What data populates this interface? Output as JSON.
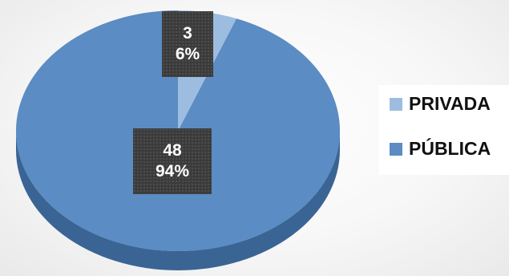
{
  "chart_data": {
    "type": "pie",
    "style": "3d",
    "slices": [
      {
        "name": "PRIVADA",
        "value": 3,
        "percent": "6%",
        "color": "#9dbde0"
      },
      {
        "name": "PÚBLICA",
        "value": 48,
        "percent": "94%",
        "color": "#5b8cc3"
      }
    ],
    "legend": {
      "position": "right",
      "items": [
        "PRIVADA",
        "PÚBLICA"
      ]
    }
  },
  "labels": {
    "privada": {
      "value": "3",
      "percent": "6%"
    },
    "publica": {
      "value": "48",
      "percent": "94%"
    }
  }
}
